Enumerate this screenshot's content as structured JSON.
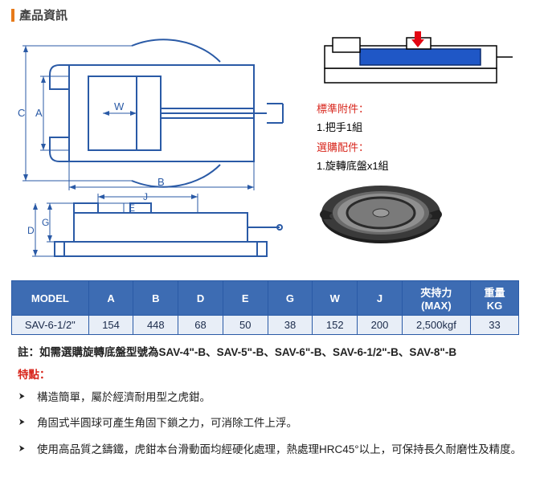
{
  "section_title": "產品資訊",
  "accessories": {
    "std_head": "標準附件：",
    "std_1": "1.把手1組",
    "opt_head": "選購配件：",
    "opt_1": "1.旋轉底盤x1組"
  },
  "diagram": {
    "top_view": {
      "stroke": "#2a5aa6",
      "stroke_width": 2,
      "labels": {
        "A": "A",
        "B": "B",
        "C": "C",
        "W": "W"
      }
    },
    "side_view": {
      "stroke": "#2a5aa6",
      "stroke_width": 2,
      "labels": {
        "D": "D",
        "E": "E",
        "G": "G",
        "J": "J"
      }
    },
    "cutaway": {
      "body_fill": "#1f57c6",
      "outline": "#000000",
      "arrow_fill": "#e30613"
    }
  },
  "turntable": {
    "outer": "#2b2b2b",
    "ring": "#6f6f6f",
    "disc": "#9a9a9a",
    "groove": "#3a3a3a",
    "hub": "#7a7a7a"
  },
  "spec_table": {
    "headers": [
      "MODEL",
      "A",
      "B",
      "D",
      "E",
      "G",
      "W",
      "J",
      "夾持力\n(MAX)",
      "重量\nKG"
    ],
    "col_widths_class": [
      "wide",
      "col",
      "col",
      "col",
      "col",
      "col",
      "col",
      "col-j",
      "clamp",
      "kg"
    ],
    "header_bg": "#3d6cb3",
    "header_fg": "#ffffff",
    "cell_bg": "#e8eef7",
    "border": "#2a5aa6",
    "rows": [
      [
        "SAV-6-1/2\"",
        "154",
        "448",
        "68",
        "50",
        "38",
        "152",
        "200",
        "2,500kgf",
        "33"
      ]
    ]
  },
  "note": "註：如需選購旋轉底盤型號為SAV-4\"-B、SAV-5\"-B、SAV-6\"-B、SAV-6-1/2\"-B、SAV-8\"-B",
  "features_title": "特點：",
  "features": [
    "構造簡單，屬於經濟耐用型之虎鉗。",
    "角固式半圓球可產生角固下鎖之力，可消除工件上浮。",
    "使用高品質之鑄鐵，虎鉗本台滑動面均經硬化處理，熱處理HRC45°以上，可保持長久耐磨性及精度。"
  ]
}
